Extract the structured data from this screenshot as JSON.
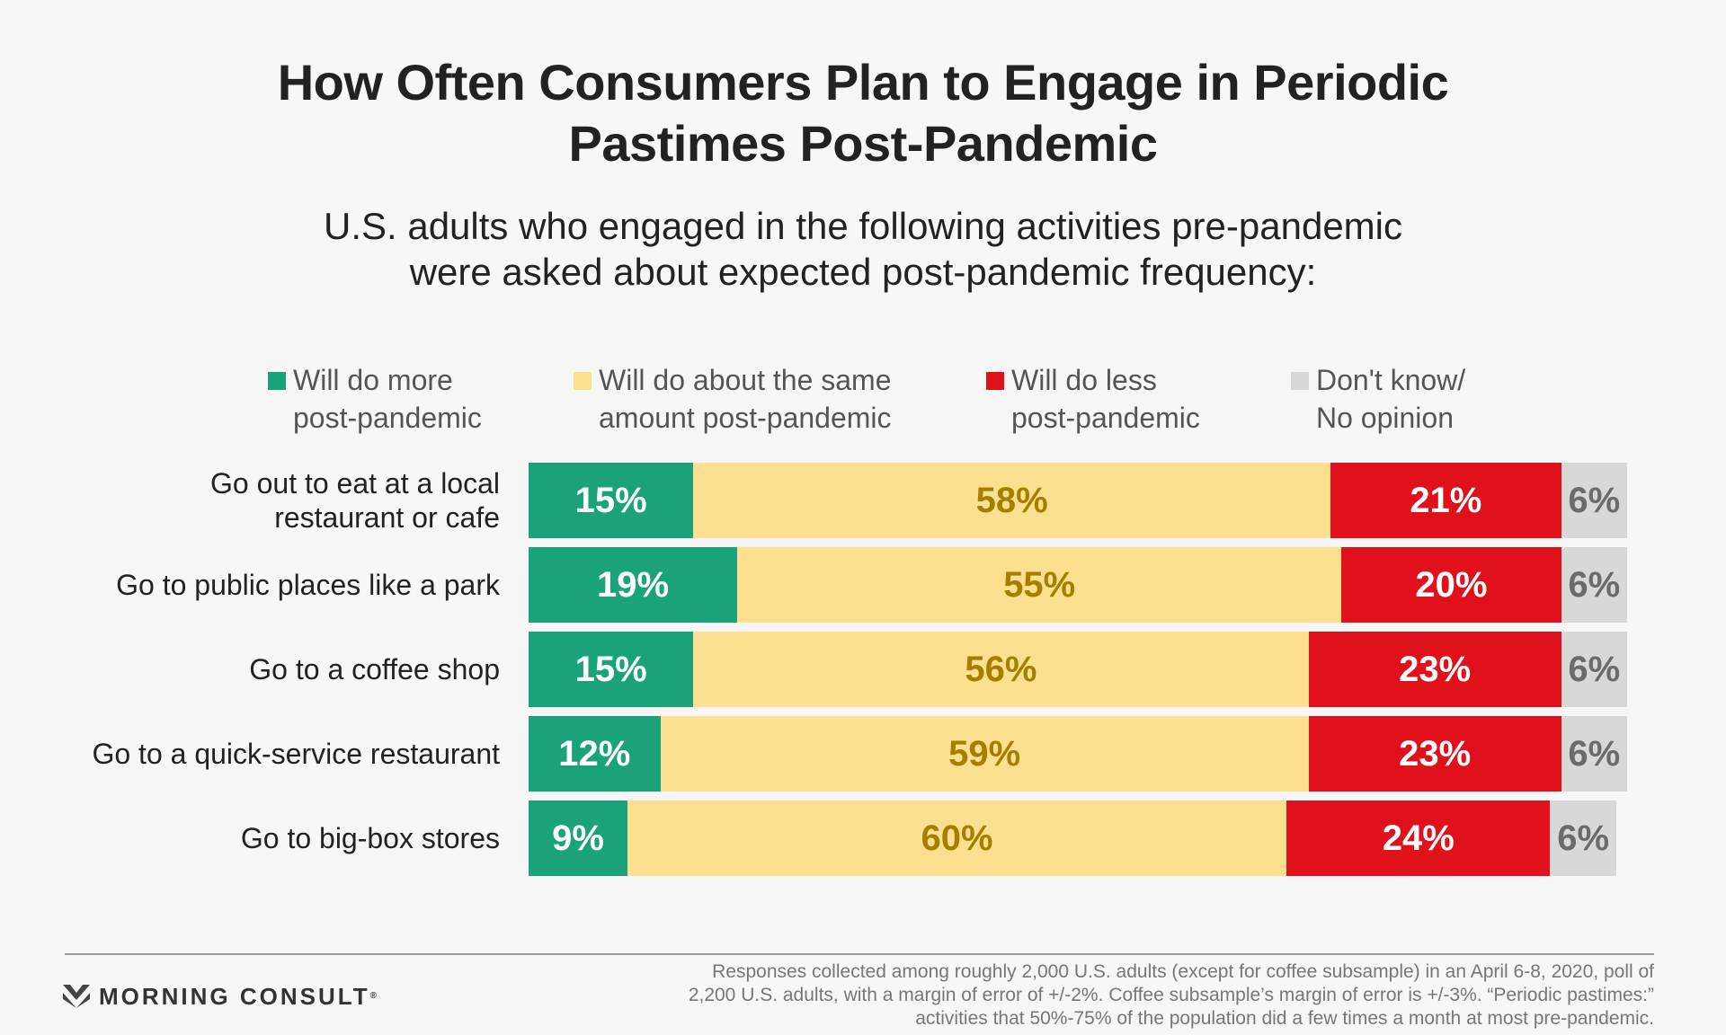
{
  "title": {
    "line1": "How Often Consumers Plan to Engage in Periodic",
    "line2": "Pastimes Post-Pandemic"
  },
  "subtitle": {
    "line1": "U.S. adults who engaged in the following activities pre-pandemic",
    "line2": "were asked about expected post-pandemic frequency:"
  },
  "legend": [
    {
      "line1": "Will do more",
      "line2": "post-pandemic",
      "color": "#1aa37a"
    },
    {
      "line1": "Will do about the same",
      "line2": "amount post-pandemic",
      "color": "#fde08f"
    },
    {
      "line1": "Will do less",
      "line2": "post-pandemic",
      "color": "#e0111b"
    },
    {
      "line1": "Don't know/",
      "line2": "No opinion",
      "color": "#d8d8d8"
    }
  ],
  "chart_data": {
    "type": "bar",
    "orientation": "horizontal",
    "stacked": true,
    "categories": [
      [
        "Go out to eat at a local",
        "restaurant or cafe"
      ],
      [
        "Go to public places like a park"
      ],
      [
        "Go to a coffee shop"
      ],
      [
        "Go to a quick-service restaurant"
      ],
      [
        "Go to big-box stores"
      ]
    ],
    "series": [
      {
        "name": "Will do more post-pandemic",
        "color": "#1aa37a",
        "label_color": "#ffffff",
        "values": [
          15,
          19,
          15,
          12,
          9
        ]
      },
      {
        "name": "Will do about the same amount post-pandemic",
        "color": "#fde08f",
        "label_color": "#a57f00",
        "values": [
          58,
          55,
          56,
          59,
          60
        ]
      },
      {
        "name": "Will do less post-pandemic",
        "color": "#e0111b",
        "label_color": "#ffffff",
        "values": [
          21,
          20,
          23,
          23,
          24
        ]
      },
      {
        "name": "Don't know/ No opinion",
        "color": "#d8d8d8",
        "label_color": "#6b6b6b",
        "values": [
          6,
          6,
          6,
          6,
          6
        ]
      }
    ],
    "value_suffix": "%",
    "xlim": [
      0,
      100
    ],
    "legend_position": "top"
  },
  "brand": {
    "name": "MORNING CONSULT",
    "mark": "®"
  },
  "footnote": {
    "line1": "Responses collected among roughly 2,000 U.S. adults (except for coffee subsample) in an April 6-8, 2020, poll of",
    "line2": "2,200 U.S. adults, with a margin of error of +/-2%. Coffee subsample’s margin of error is +/-3%. “Periodic pastimes:”",
    "line3": "activities that 50%-75% of the population did a few times a month at most pre-pandemic."
  }
}
